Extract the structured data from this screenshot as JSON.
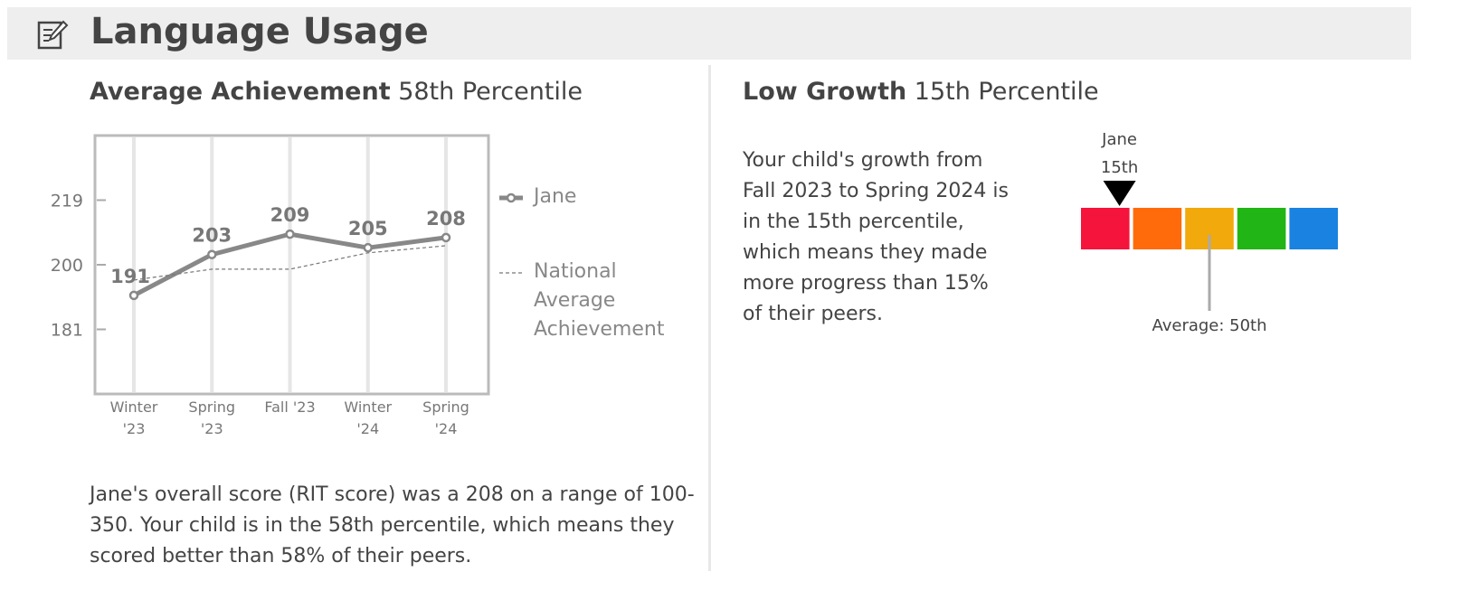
{
  "header": {
    "title": "Language Usage"
  },
  "achievement": {
    "title_bold": "Average Achievement",
    "title_rest": "58th Percentile",
    "text": "Jane's overall score (RIT score) was a 208 on a range of 100-350. Your child is in the 58th percentile, which means they scored better than 58% of their peers."
  },
  "chart_data": {
    "type": "line",
    "categories": [
      "Winter '23",
      "Spring '23",
      "Fall '23",
      "Winter '24",
      "Spring '24"
    ],
    "series": [
      {
        "name": "Jane",
        "color": "#888888",
        "style": "solid",
        "values": [
          191,
          203,
          209,
          205,
          208
        ]
      },
      {
        "name": "National Average Achievement",
        "color": "#777777",
        "style": "dashed",
        "values": [
          195.5,
          198.7,
          198.7,
          203.5,
          205.6
        ]
      }
    ],
    "ylim": [
      162,
      238
    ],
    "yticks": [
      181,
      200,
      219
    ],
    "grid": "x"
  },
  "growth": {
    "title_bold": "Low Growth",
    "title_rest": "15th Percentile",
    "text": "Your child's growth from Fall 2023 to Spring 2024 is in the 15th percentile, which means they made more progress than 15% of their peers.",
    "marker": {
      "name": "Jane",
      "label": "15th",
      "value": 15
    },
    "average": {
      "label": "Average: 50th",
      "value": 50
    },
    "scale": [
      0,
      100
    ],
    "segments": [
      "#f5143c",
      "#ff6b0b",
      "#f1a90b",
      "#21b515",
      "#1a82e0"
    ]
  }
}
